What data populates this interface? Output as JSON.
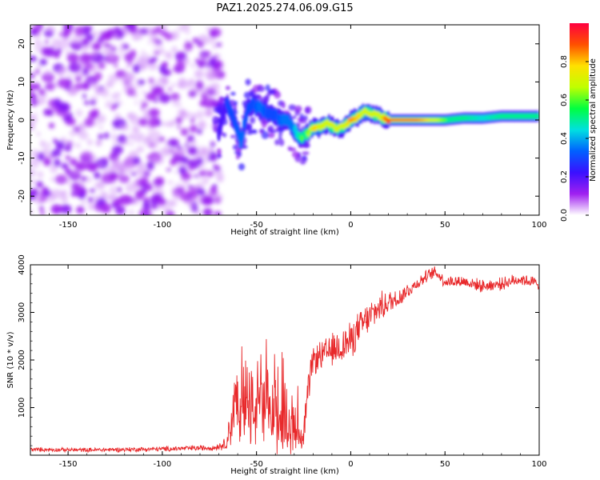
{
  "title": "PAZ1.2025.274.06.09.G15",
  "chart_data": [
    {
      "type": "heatmap",
      "xlabel": "Height of straight line (km)",
      "ylabel": "Frequency (Hz)",
      "xlim": [
        -170,
        100
      ],
      "ylim": [
        -25,
        25
      ],
      "xticks": [
        -150,
        -100,
        -50,
        0,
        50,
        100
      ],
      "yticks": [
        -20,
        -10,
        0,
        10,
        20
      ],
      "colorbar": {
        "label": "Normalized spectral amplitude",
        "range": [
          0,
          1
        ],
        "ticks": [
          0.0,
          0.2,
          0.4,
          0.6,
          0.8
        ],
        "colormap": [
          "#ffffff",
          "#a020f0",
          "#3a10ff",
          "#0060ff",
          "#00e0e0",
          "#00ff40",
          "#c0ff00",
          "#ffe000",
          "#ff5000",
          "#ff0040"
        ]
      },
      "noise_region": {
        "x_range": [
          -170,
          -72
        ],
        "freq_range": [
          -25,
          25
        ],
        "amplitude": 0.1
      },
      "ridge": {
        "x": [
          -70,
          -66,
          -62,
          -58,
          -55,
          -52,
          -48,
          -44,
          -40,
          -36,
          -32,
          -28,
          -26,
          -24,
          -20,
          -16,
          -12,
          -8,
          -4,
          0,
          3,
          6,
          10,
          15,
          20,
          30,
          40,
          50,
          60,
          70,
          80,
          90,
          100
        ],
        "freq": [
          -3,
          5,
          0,
          -6,
          3,
          4,
          3,
          2,
          1,
          0,
          -1,
          -4,
          -5,
          -4,
          -2,
          -2,
          -1,
          -2,
          -2,
          0,
          0.5,
          2,
          2,
          1,
          0,
          0,
          0,
          0,
          0.5,
          0.5,
          1,
          1,
          1
        ],
        "amplitude": [
          0.25,
          0.3,
          0.3,
          0.35,
          0.3,
          0.3,
          0.35,
          0.3,
          0.3,
          0.35,
          0.4,
          0.45,
          0.6,
          0.55,
          0.8,
          0.75,
          0.7,
          0.75,
          0.7,
          0.85,
          0.8,
          0.75,
          0.7,
          0.7,
          0.95,
          1.0,
          0.8,
          0.6,
          0.5,
          0.45,
          0.5,
          0.55,
          0.5
        ]
      }
    },
    {
      "type": "line",
      "xlabel": "Height of straight line (km)",
      "ylabel": "SNR (10 * v/v)",
      "xlim": [
        -170,
        100
      ],
      "ylim": [
        0,
        4000
      ],
      "xticks": [
        -150,
        -100,
        -50,
        0,
        50,
        100
      ],
      "yticks": [
        1000,
        2000,
        3000,
        4000
      ],
      "series": [
        {
          "name": "SNR",
          "color": "#e8282a",
          "envelope": {
            "x": [
              -170,
              -140,
              -100,
              -72,
              -66,
              -63,
              -61,
              -59,
              -55,
              -52,
              -50,
              -45,
              -40,
              -35,
              -30,
              -27,
              -25,
              -22,
              -20,
              -15,
              -10,
              -5,
              0,
              5,
              10,
              15,
              20,
              25,
              30,
              35,
              40,
              45,
              50,
              60,
              70,
              80,
              90,
              100
            ],
            "center": [
              120,
              110,
              130,
              160,
              250,
              800,
              1100,
              900,
              900,
              1000,
              1100,
              900,
              800,
              700,
              600,
              400,
              500,
              1500,
              2000,
              2100,
              2200,
              2300,
              2400,
              2700,
              2900,
              3100,
              3200,
              3300,
              3450,
              3600,
              3750,
              3850,
              3650,
              3650,
              3550,
              3600,
              3700,
              3600
            ],
            "amplitude": [
              50,
              50,
              60,
              70,
              150,
              700,
              900,
              800,
              900,
              1200,
              1100,
              1000,
              900,
              800,
              700,
              500,
              500,
              400,
              350,
              350,
              400,
              450,
              450,
              400,
              400,
              350,
              300,
              250,
              200,
              150,
              150,
              150,
              150,
              150,
              150,
              150,
              150,
              150
            ]
          }
        }
      ]
    }
  ]
}
